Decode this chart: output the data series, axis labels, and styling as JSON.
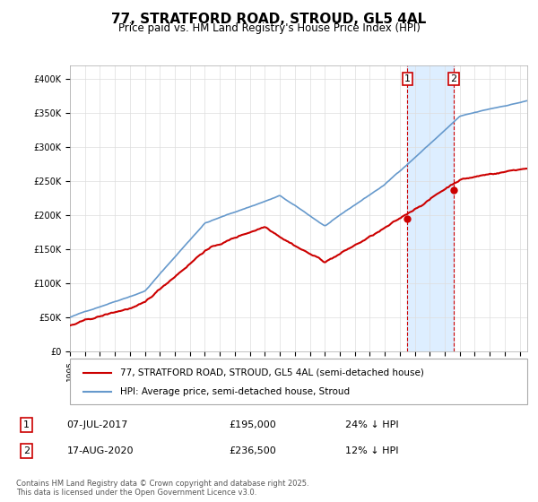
{
  "title": "77, STRATFORD ROAD, STROUD, GL5 4AL",
  "subtitle": "Price paid vs. HM Land Registry's House Price Index (HPI)",
  "red_label": "77, STRATFORD ROAD, STROUD, GL5 4AL (semi-detached house)",
  "blue_label": "HPI: Average price, semi-detached house, Stroud",
  "annotation1_box": "1",
  "annotation1_date": "07-JUL-2017",
  "annotation1_price": "£195,000",
  "annotation1_note": "24% ↓ HPI",
  "annotation2_box": "2",
  "annotation2_date": "17-AUG-2020",
  "annotation2_price": "£236,500",
  "annotation2_note": "12% ↓ HPI",
  "footer": "Contains HM Land Registry data © Crown copyright and database right 2025.\nThis data is licensed under the Open Government Licence v3.0.",
  "ylim": [
    0,
    420000
  ],
  "start_year": 1995,
  "end_year": 2025,
  "red_color": "#cc0000",
  "blue_color": "#6699cc",
  "shaded_color": "#ddeeff",
  "annotation_line_color": "#cc0000",
  "background_color": "#ffffff",
  "grid_color": "#dddddd"
}
